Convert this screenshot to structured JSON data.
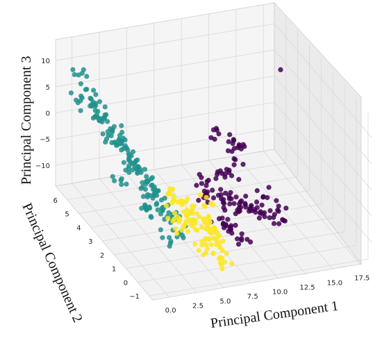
{
  "chart_data": {
    "type": "scatter",
    "projection": "3d",
    "title": "",
    "xlabel": "Principal Component 1",
    "ylabel": "Principal Component 2",
    "zlabel": "Principal Component 3",
    "xlim": [
      -1.5,
      18.5
    ],
    "ylim": [
      -1.3,
      7
    ],
    "zlim": [
      -14,
      14
    ],
    "x_ticks": [
      "0.0",
      "2.5",
      "5.0",
      "7.5",
      "10.0",
      "12.5",
      "15.0",
      "17.5"
    ],
    "y_ticks": [
      "−1",
      "0",
      "1",
      "2",
      "3",
      "4",
      "5",
      "6"
    ],
    "z_ticks": [
      "−10",
      "−5",
      "0",
      "5",
      "10"
    ],
    "grid": true,
    "legend": "none",
    "colors": [
      "#440154",
      "#21918c",
      "#fde725"
    ],
    "series": [
      {
        "color": "#21918c",
        "points": [
          [
            -1.0,
            5.5,
            11.0
          ],
          [
            -0.8,
            5.0,
            9.5
          ],
          [
            -0.5,
            4.5,
            8.0
          ],
          [
            -0.2,
            4.0,
            7.0
          ],
          [
            0.0,
            5.0,
            6.0
          ],
          [
            0.3,
            4.5,
            5.0
          ],
          [
            0.5,
            4.0,
            4.0
          ],
          [
            0.8,
            3.5,
            3.0
          ],
          [
            1.0,
            4.5,
            2.0
          ],
          [
            1.2,
            4.0,
            1.0
          ],
          [
            1.5,
            3.5,
            0.0
          ],
          [
            1.8,
            3.0,
            -1.0
          ],
          [
            2.0,
            4.0,
            -2.0
          ],
          [
            2.2,
            3.5,
            -3.0
          ],
          [
            2.5,
            3.0,
            -4.0
          ],
          [
            2.8,
            2.5,
            -5.0
          ],
          [
            3.0,
            3.5,
            -6.0
          ],
          [
            3.2,
            3.0,
            -7.0
          ],
          [
            3.5,
            2.5,
            -8.0
          ],
          [
            3.8,
            2.0,
            -9.0
          ],
          [
            4.0,
            3.0,
            -10.0
          ],
          [
            4.3,
            2.5,
            -11.0
          ],
          [
            0.5,
            5.5,
            2.5
          ],
          [
            1.5,
            5.0,
            -1.5
          ],
          [
            2.5,
            4.5,
            -5.5
          ],
          [
            3.5,
            4.0,
            -8.5
          ],
          [
            -0.3,
            6.0,
            4.5
          ],
          [
            2.0,
            2.5,
            -8.0
          ],
          [
            1.0,
            2.0,
            -6.0
          ],
          [
            0.2,
            3.0,
            -3.0
          ],
          [
            3.0,
            1.5,
            -11.0
          ],
          [
            4.5,
            2.0,
            -12.0
          ]
        ]
      },
      {
        "color": "#fde725",
        "points": [
          [
            3.5,
            1.5,
            -6.5
          ],
          [
            4.0,
            1.0,
            -7.0
          ],
          [
            4.5,
            0.5,
            -7.5
          ],
          [
            5.0,
            0.0,
            -8.0
          ],
          [
            5.5,
            -0.5,
            -8.5
          ],
          [
            3.8,
            2.0,
            -6.0
          ],
          [
            4.3,
            1.5,
            -6.5
          ],
          [
            4.8,
            1.0,
            -7.0
          ],
          [
            5.3,
            0.5,
            -7.5
          ],
          [
            5.8,
            0.0,
            -8.0
          ],
          [
            4.0,
            2.5,
            -5.5
          ],
          [
            4.6,
            2.0,
            -6.0
          ],
          [
            5.1,
            1.5,
            -6.5
          ],
          [
            5.6,
            1.0,
            -7.0
          ],
          [
            6.0,
            0.5,
            -7.5
          ],
          [
            4.4,
            0.0,
            -9.0
          ],
          [
            4.9,
            -0.5,
            -9.5
          ],
          [
            5.4,
            -1.0,
            -10.0
          ],
          [
            3.6,
            1.0,
            -8.5
          ],
          [
            6.2,
            1.5,
            -6.0
          ]
        ]
      },
      {
        "color": "#440154",
        "points": [
          [
            6.0,
            1.0,
            -4.0
          ],
          [
            6.5,
            1.5,
            -3.5
          ],
          [
            7.0,
            2.0,
            -3.0
          ],
          [
            7.5,
            1.5,
            -4.5
          ],
          [
            8.0,
            1.0,
            -5.0
          ],
          [
            8.5,
            1.5,
            -5.5
          ],
          [
            9.0,
            1.0,
            -6.0
          ],
          [
            9.5,
            1.5,
            -6.5
          ],
          [
            10.0,
            1.0,
            -7.0
          ],
          [
            10.5,
            1.5,
            -7.5
          ],
          [
            11.0,
            1.0,
            -8.0
          ],
          [
            12.0,
            1.0,
            -9.0
          ],
          [
            6.5,
            0.5,
            -6.0
          ],
          [
            7.0,
            0.0,
            -7.0
          ],
          [
            7.5,
            0.5,
            -8.0
          ],
          [
            8.0,
            0.0,
            -9.0
          ],
          [
            9.0,
            2.0,
            -2.0
          ],
          [
            10.0,
            2.5,
            -1.0
          ],
          [
            11.0,
            3.0,
            0.0
          ],
          [
            9.5,
            3.5,
            2.0
          ],
          [
            10.5,
            3.0,
            1.0
          ],
          [
            8.5,
            2.5,
            -3.0
          ],
          [
            13.0,
            1.5,
            -9.5
          ],
          [
            12.5,
            2.0,
            -8.0
          ],
          [
            18.0,
            6.0,
            4.0
          ]
        ]
      }
    ]
  }
}
